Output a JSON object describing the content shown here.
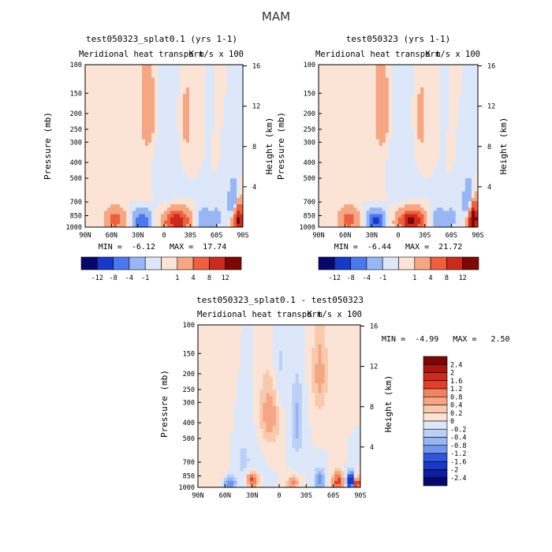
{
  "figure_title": "MAM",
  "colors": {
    "neg": [
      "#08086b",
      "#0a1fa0",
      "#1838c8",
      "#2e57e0",
      "#4a78ee",
      "#6f97f0",
      "#98b6f4",
      "#bcd0f6",
      "#dce8fa"
    ],
    "pos": [
      "#fbe4d6",
      "#f9c9ad",
      "#f6a683",
      "#f2835f",
      "#ee5f3f",
      "#e2402b",
      "#cb2a1c",
      "#a8170f",
      "#7c0705"
    ]
  },
  "chart_data": [
    {
      "type": "heatmap",
      "title": "test050323_splat0.1 (yrs 1-1)",
      "subtitle": "Meridional heat transport",
      "units": "K m/s x 100",
      "xlabel": "",
      "ylabel": "Pressure (mb)",
      "y2label": "Height (km)",
      "x_ticks": [
        "90N",
        "60N",
        "30N",
        "0",
        "30S",
        "60S",
        "90S"
      ],
      "y_ticks": [
        100,
        150,
        200,
        250,
        300,
        400,
        500,
        700,
        850,
        1000
      ],
      "y2_ticks": [
        16,
        12,
        8,
        4
      ],
      "ylim": [
        1000,
        100
      ],
      "stats": "MIN =  -6.12   MAX =  17.74",
      "colorbar_labels": [
        "-12",
        "-8",
        "-4",
        "-1",
        "1",
        "4",
        "8",
        "12"
      ],
      "features": [
        {
          "lat": 40,
          "p": 850,
          "v": -0.5,
          "sx": 12,
          "sp": 180
        },
        {
          "lat": 25,
          "p": 920,
          "v": -8,
          "sx": 6,
          "sp": 80
        },
        {
          "lat": -15,
          "p": 920,
          "v": 12,
          "sx": 9,
          "sp": 90
        },
        {
          "lat": 55,
          "p": 900,
          "v": 6,
          "sx": 7,
          "sp": 90
        },
        {
          "lat": -45,
          "p": 900,
          "v": -3,
          "sx": 6,
          "sp": 90
        },
        {
          "lat": -60,
          "p": 880,
          "v": -2,
          "sx": 5,
          "sp": 90
        },
        {
          "lat": 18,
          "p": 190,
          "v": 3,
          "sx": 5,
          "sp": 80
        },
        {
          "lat": -25,
          "p": 220,
          "v": 1.5,
          "sx": 6,
          "sp": 120
        },
        {
          "lat": -5,
          "p": 300,
          "v": -0.8,
          "sx": 12,
          "sp": 300
        },
        {
          "lat": -85,
          "p": 900,
          "v": 14,
          "sx": 4,
          "sp": 140
        },
        {
          "lat": -80,
          "p": 700,
          "v": -5,
          "sx": 4,
          "sp": 120
        },
        {
          "lat": 45,
          "p": 500,
          "v": 0.4,
          "sx": 25,
          "sp": 400
        }
      ]
    },
    {
      "type": "heatmap",
      "title": "test050323 (yrs 1-1)",
      "subtitle": "Meridional heat transport",
      "units": "K m/s x 100",
      "xlabel": "",
      "ylabel": "Pressure (mb)",
      "y2label": "Height (km)",
      "x_ticks": [
        "90N",
        "60N",
        "30N",
        "0",
        "30S",
        "60S",
        "90S"
      ],
      "y_ticks": [
        100,
        150,
        200,
        250,
        300,
        400,
        500,
        700,
        850,
        1000
      ],
      "y2_ticks": [
        16,
        12,
        8,
        4
      ],
      "ylim": [
        1000,
        100
      ],
      "stats": "MIN =  -6.44   MAX =  21.72",
      "colorbar_labels": [
        "-12",
        "-8",
        "-4",
        "-1",
        "1",
        "4",
        "8",
        "12"
      ],
      "features": [
        {
          "lat": 40,
          "p": 850,
          "v": -0.5,
          "sx": 12,
          "sp": 180
        },
        {
          "lat": 25,
          "p": 920,
          "v": -9,
          "sx": 6,
          "sp": 80
        },
        {
          "lat": -15,
          "p": 920,
          "v": 14,
          "sx": 9,
          "sp": 90
        },
        {
          "lat": 55,
          "p": 900,
          "v": 6,
          "sx": 7,
          "sp": 90
        },
        {
          "lat": -45,
          "p": 900,
          "v": -3,
          "sx": 6,
          "sp": 90
        },
        {
          "lat": -60,
          "p": 880,
          "v": -2,
          "sx": 5,
          "sp": 90
        },
        {
          "lat": 18,
          "p": 190,
          "v": 3,
          "sx": 5,
          "sp": 80
        },
        {
          "lat": -25,
          "p": 220,
          "v": 1.5,
          "sx": 6,
          "sp": 120
        },
        {
          "lat": -5,
          "p": 300,
          "v": -0.8,
          "sx": 12,
          "sp": 300
        },
        {
          "lat": -85,
          "p": 900,
          "v": 17,
          "sx": 4,
          "sp": 140
        },
        {
          "lat": -80,
          "p": 700,
          "v": -5,
          "sx": 4,
          "sp": 120
        },
        {
          "lat": 45,
          "p": 500,
          "v": 0.4,
          "sx": 25,
          "sp": 400
        }
      ]
    },
    {
      "type": "heatmap",
      "title": "test050323_splat0.1 - test050323",
      "subtitle": "Meridional heat transport",
      "units": "K m/s x 100",
      "xlabel": "",
      "ylabel": "Pressure (mb)",
      "y2label": "Height (km)",
      "x_ticks": [
        "90N",
        "60N",
        "30N",
        "0",
        "30S",
        "60S",
        "90S"
      ],
      "y_ticks": [
        100,
        150,
        200,
        250,
        300,
        400,
        500,
        700,
        850,
        1000
      ],
      "y2_ticks": [
        16,
        12,
        8,
        4
      ],
      "ylim": [
        1000,
        100
      ],
      "stats": "MIN =  -4.99   MAX =   2.50",
      "colorbar_labels": [
        "2.4",
        "2",
        "1.6",
        "1.2",
        "0.8",
        "0.4",
        "0.2",
        "0",
        "-0.2",
        "-0.4",
        "-0.8",
        "-1.2",
        "-1.6",
        "-2",
        "-2.4"
      ],
      "features": [
        {
          "lat": 70,
          "p": 500,
          "v": 0.15,
          "sx": 15,
          "sp": 400
        },
        {
          "lat": 40,
          "p": 700,
          "v": -0.25,
          "sx": 10,
          "sp": 250
        },
        {
          "lat": 10,
          "p": 350,
          "v": 0.6,
          "sx": 8,
          "sp": 120
        },
        {
          "lat": 0,
          "p": 200,
          "v": -0.3,
          "sx": 6,
          "sp": 100
        },
        {
          "lat": 30,
          "p": 900,
          "v": 1.4,
          "sx": 4,
          "sp": 60
        },
        {
          "lat": 55,
          "p": 950,
          "v": -1.2,
          "sx": 4,
          "sp": 60
        },
        {
          "lat": -15,
          "p": 950,
          "v": 0.9,
          "sx": 4,
          "sp": 60
        },
        {
          "lat": -45,
          "p": 900,
          "v": -1.0,
          "sx": 4,
          "sp": 80
        },
        {
          "lat": -65,
          "p": 930,
          "v": 1.5,
          "sx": 4,
          "sp": 80
        },
        {
          "lat": -80,
          "p": 920,
          "v": -3.0,
          "sx": 3,
          "sp": 70
        },
        {
          "lat": -85,
          "p": 950,
          "v": 2.4,
          "sx": 3,
          "sp": 60
        },
        {
          "lat": -20,
          "p": 400,
          "v": -0.5,
          "sx": 5,
          "sp": 150
        },
        {
          "lat": -45,
          "p": 200,
          "v": 0.5,
          "sx": 6,
          "sp": 100
        }
      ]
    }
  ]
}
